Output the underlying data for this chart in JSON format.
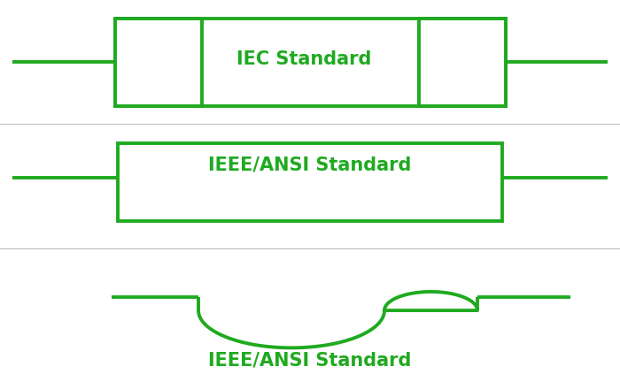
{
  "color": "#1faa1f",
  "lw": 2.8,
  "bg": "#ffffff",
  "divider_color": "#bbbbbb",
  "label1": "IEC Standard",
  "label2": "IEEE/ANSI Standard",
  "label3": "IEEE/ANSI Standard",
  "font_size": 15,
  "font_weight": "bold"
}
